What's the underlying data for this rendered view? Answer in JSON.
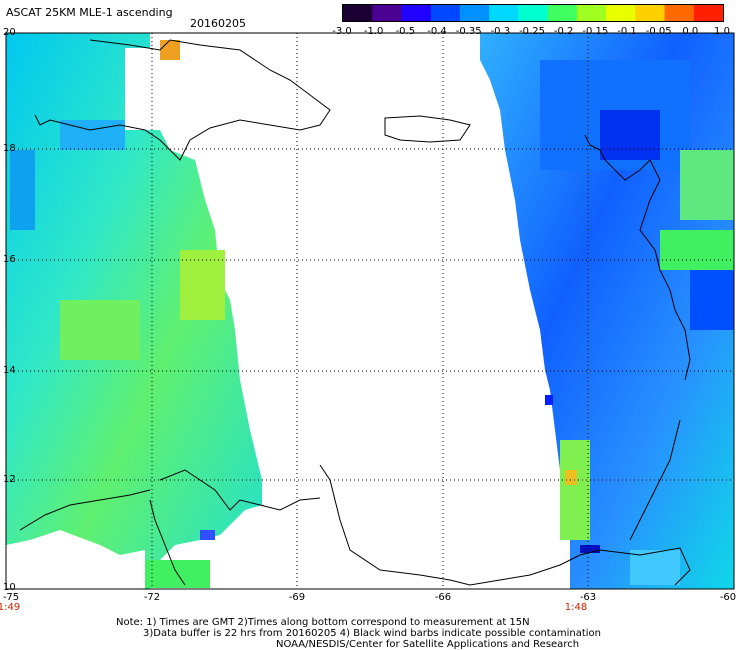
{
  "title": {
    "product": "ASCAT 25KM MLE-1 ascending",
    "date": "20160205"
  },
  "colorbar": {
    "labels": [
      "-3.0",
      "-1.0",
      "-0.5",
      "-0.4",
      "-0.35",
      "-0.3",
      "-0.25",
      "-0.2",
      "-0.15",
      "-0.1",
      "-0.05",
      "0.0",
      "1.0"
    ],
    "colors": [
      "#1a0033",
      "#4a0090",
      "#2000ff",
      "#0048ff",
      "#0090ff",
      "#00d8ff",
      "#00ffd0",
      "#40ff60",
      "#a0ff20",
      "#e8ff00",
      "#ffd000",
      "#ff6a00",
      "#ff2000"
    ]
  },
  "axes": {
    "lat_labels": [
      "20",
      "18",
      "16",
      "14",
      "12",
      "10"
    ],
    "lon_labels": [
      "-75",
      "-72",
      "-69",
      "-66",
      "-63",
      "-60"
    ],
    "time_labels": [
      "1:49",
      "1:48"
    ]
  },
  "notes": [
    "Note: 1) Times are GMT 2)Times along bottom correspond to measurement at 15N",
    "3)Data buffer is 22 hrs from 20160205 4) Black wind barbs indicate possible contamination",
    "NOAA/NESDIS/Center for Satellite Applications and Research"
  ]
}
